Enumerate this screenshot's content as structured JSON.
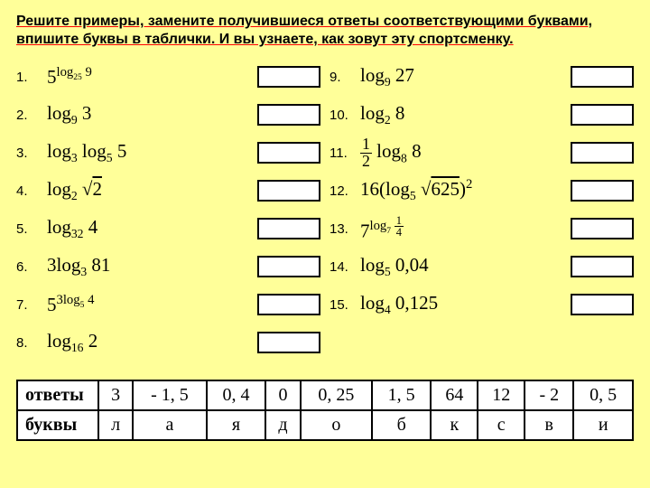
{
  "instructions": "Решите примеры, замените получившиеся ответы соответствующими буквами, впишите буквы в таблички. И вы узнаете, как зовут эту спортсменку.",
  "problems_left": [
    {
      "n": "1.",
      "expr": "5<sup>log<sub>25</sub> 9</sup>"
    },
    {
      "n": "2.",
      "expr": "log<sub>9</sub> 3"
    },
    {
      "n": "3.",
      "expr": "log<sub>3</sub> log<sub>5</sub> 5"
    },
    {
      "n": "4.",
      "expr": "log<sub>2</sub> <span class='lsqrt'></span><span class='sqrt'>2</span>"
    },
    {
      "n": "5.",
      "expr": "log<sub>32</sub> 4"
    },
    {
      "n": "6.",
      "expr": "3log<sub>3</sub> 81"
    },
    {
      "n": "7.",
      "expr": "5<sup>3log<sub>5</sub> 4</sup>"
    },
    {
      "n": "8.",
      "expr": "log<sub>16</sub> 2"
    }
  ],
  "problems_right": [
    {
      "n": "9.",
      "expr": "log<sub>9</sub> 27"
    },
    {
      "n": "10.",
      "expr": "log<sub>2</sub> 8"
    },
    {
      "n": "11.",
      "expr": "<span class='frac'><span class='t'>1</span><span class='b'>2</span></span> log<sub>8</sub> 8"
    },
    {
      "n": "12.",
      "expr": "16(log<sub>5</sub> <span class='lsqrt'></span><span class='sqrt'>625</span>)<sup>2</sup>"
    },
    {
      "n": "13.",
      "expr": "7<sup>log<sub>7</sub> <span class='frac'><span class='t'>1</span><span class='b'>4</span></span></sup>"
    },
    {
      "n": "14.",
      "expr": "log<sub>5</sub> 0,04"
    },
    {
      "n": "15.",
      "expr": "log<sub>4</sub> 0,125"
    }
  ],
  "answers": {
    "header1": "ответы",
    "header2": "буквы",
    "row1": [
      "3",
      "- 1, 5",
      "0, 4",
      "0",
      "0, 25",
      "1, 5",
      "64",
      "12",
      "- 2",
      "0, 5"
    ],
    "row2": [
      "л",
      "а",
      "я",
      "д",
      "о",
      "б",
      "к",
      "с",
      "в",
      "и"
    ]
  },
  "colors": {
    "background": "#ffff99",
    "box_border": "#000000",
    "box_fill": "#ffffff",
    "underline": "#ff0000"
  }
}
